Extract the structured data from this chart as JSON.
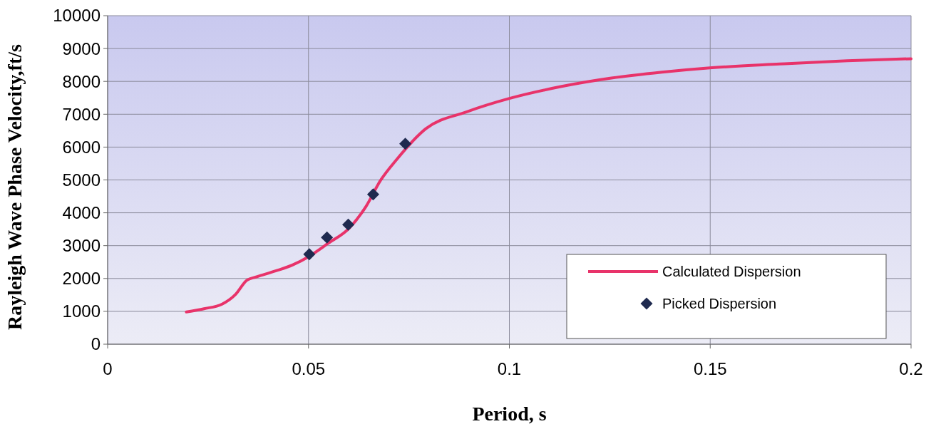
{
  "chart_data": {
    "type": "line",
    "xlabel": "Period, s",
    "ylabel": "Rayleigh Wave Phase Velocity,ft/s",
    "xlim": [
      0,
      0.2
    ],
    "xticks": [
      0,
      0.05,
      0.1,
      0.15,
      0.2
    ],
    "ylim": [
      0,
      10000
    ],
    "yticks": [
      0,
      1000,
      2000,
      3000,
      4000,
      5000,
      6000,
      7000,
      8000,
      9000,
      10000
    ],
    "grid": true,
    "legend": "bottom right",
    "series": [
      {
        "name": "Calculated Dispersion",
        "color": "#e8336a",
        "marker": "none",
        "line_style": "solid",
        "x": [
          0.0196,
          0.024,
          0.0285,
          0.0318,
          0.0347,
          0.0371,
          0.0418,
          0.046,
          0.0501,
          0.0549,
          0.0602,
          0.0643,
          0.0679,
          0.072,
          0.0792,
          0.0893,
          0.1,
          0.1128,
          0.1254,
          0.138,
          0.1499,
          0.1673,
          0.1841,
          0.2
        ],
        "values": [
          980,
          1080,
          1220,
          1510,
          1950,
          2050,
          2230,
          2410,
          2670,
          3070,
          3540,
          4190,
          4980,
          5630,
          6560,
          7070,
          7480,
          7840,
          8100,
          8280,
          8410,
          8530,
          8630,
          8690
        ]
      },
      {
        "name": "Picked Dispersion",
        "type": "scatter",
        "color": "#1f2a4f",
        "marker": "diamond",
        "x": [
          0.0502,
          0.0546,
          0.0599,
          0.0661,
          0.0741
        ],
        "values": [
          2740,
          3250,
          3640,
          4560,
          6100
        ]
      }
    ]
  }
}
